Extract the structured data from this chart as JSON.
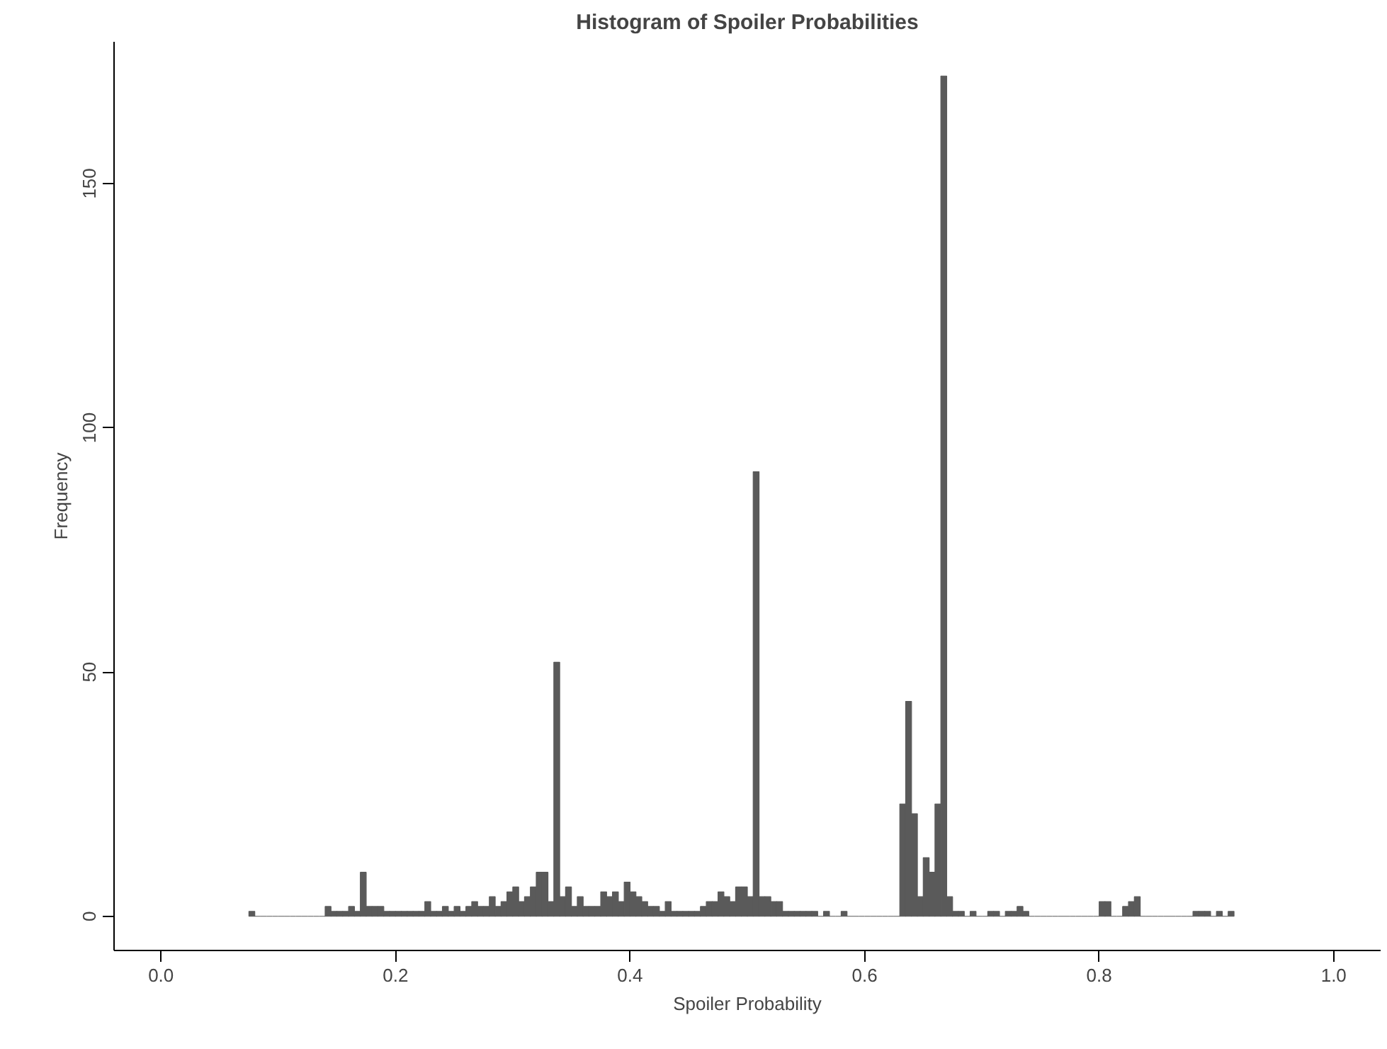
{
  "chart_data": {
    "type": "histogram",
    "title": "Histogram of Spoiler Probabilities",
    "xlabel": "Spoiler Probability",
    "ylabel": "Frequency",
    "bins": [
      0.075,
      0.08,
      0.085,
      0.09,
      0.095,
      0.1,
      0.105,
      0.11,
      0.115,
      0.12,
      0.125,
      0.13,
      0.135,
      0.14,
      0.145,
      0.15,
      0.155,
      0.16,
      0.165,
      0.17,
      0.175,
      0.18,
      0.185,
      0.19,
      0.195,
      0.2,
      0.205,
      0.21,
      0.215,
      0.22,
      0.225,
      0.23,
      0.235,
      0.24,
      0.245,
      0.25,
      0.255,
      0.26,
      0.265,
      0.27,
      0.275,
      0.28,
      0.285,
      0.29,
      0.295,
      0.3,
      0.305,
      0.31,
      0.315,
      0.32,
      0.325,
      0.33,
      0.335,
      0.34,
      0.345,
      0.35,
      0.355,
      0.36,
      0.365,
      0.37,
      0.375,
      0.38,
      0.385,
      0.39,
      0.395,
      0.4,
      0.405,
      0.41,
      0.415,
      0.42,
      0.425,
      0.43,
      0.435,
      0.44,
      0.445,
      0.45,
      0.455,
      0.46,
      0.465,
      0.47,
      0.475,
      0.48,
      0.485,
      0.49,
      0.495,
      0.5,
      0.505,
      0.51,
      0.515,
      0.52,
      0.525,
      0.53,
      0.535,
      0.54,
      0.545,
      0.55,
      0.555,
      0.56,
      0.565,
      0.57,
      0.575,
      0.58,
      0.585,
      0.59,
      0.595,
      0.6,
      0.605,
      0.61,
      0.615,
      0.62,
      0.625,
      0.63,
      0.635,
      0.64,
      0.645,
      0.65,
      0.655,
      0.66,
      0.665,
      0.67,
      0.675,
      0.68,
      0.685,
      0.69,
      0.695,
      0.7,
      0.705,
      0.71,
      0.715,
      0.72,
      0.725,
      0.73,
      0.735,
      0.74,
      0.745,
      0.75,
      0.755,
      0.76,
      0.765,
      0.77,
      0.775,
      0.78,
      0.785,
      0.79,
      0.795,
      0.8,
      0.805,
      0.81,
      0.815,
      0.82,
      0.825,
      0.83,
      0.835,
      0.84,
      0.845,
      0.85,
      0.855,
      0.86,
      0.865,
      0.87,
      0.875,
      0.88,
      0.885,
      0.89,
      0.895,
      0.9,
      0.905,
      0.91,
      0.915
    ],
    "values": [
      1,
      0,
      0,
      0,
      0,
      0,
      0,
      0,
      0,
      0,
      0,
      0,
      0,
      2,
      1,
      1,
      1,
      2,
      1,
      9,
      2,
      2,
      2,
      1,
      1,
      1,
      1,
      1,
      1,
      1,
      3,
      1,
      1,
      2,
      1,
      2,
      1,
      2,
      3,
      2,
      2,
      4,
      2,
      3,
      5,
      6,
      3,
      4,
      6,
      9,
      9,
      3,
      52,
      4,
      6,
      2,
      4,
      2,
      2,
      2,
      5,
      4,
      5,
      3,
      7,
      5,
      4,
      3,
      2,
      2,
      1,
      3,
      1,
      1,
      1,
      1,
      1,
      2,
      3,
      3,
      5,
      4,
      3,
      6,
      6,
      4,
      91,
      4,
      4,
      3,
      3,
      1,
      1,
      1,
      1,
      1,
      1,
      0,
      1,
      0,
      0,
      1,
      0,
      0,
      0,
      0,
      0,
      0,
      0,
      0,
      0,
      23,
      44,
      21,
      4,
      12,
      9,
      23,
      172,
      4,
      1,
      1,
      0,
      1,
      0,
      0,
      1,
      1,
      0,
      1,
      1,
      2,
      1,
      0,
      0,
      0,
      0,
      0,
      0,
      0,
      0,
      0,
      0,
      0,
      0,
      3,
      3,
      0,
      0,
      2,
      3,
      4,
      0,
      0,
      0,
      0,
      0,
      0,
      0,
      0,
      0,
      1,
      1,
      1,
      0,
      1,
      0,
      1
    ],
    "color": "#5a5a5a",
    "xlim": [
      -0.04,
      1.04
    ],
    "xticks": [
      {
        "value": 0,
        "label": "0.0"
      },
      0.2,
      0.4,
      0.6,
      0.8,
      {
        "value": 1,
        "label": "1.0"
      }
    ],
    "ylim": [
      -7,
      179
    ],
    "yticks": [
      0,
      50,
      100,
      150
    ],
    "grid": false
  }
}
